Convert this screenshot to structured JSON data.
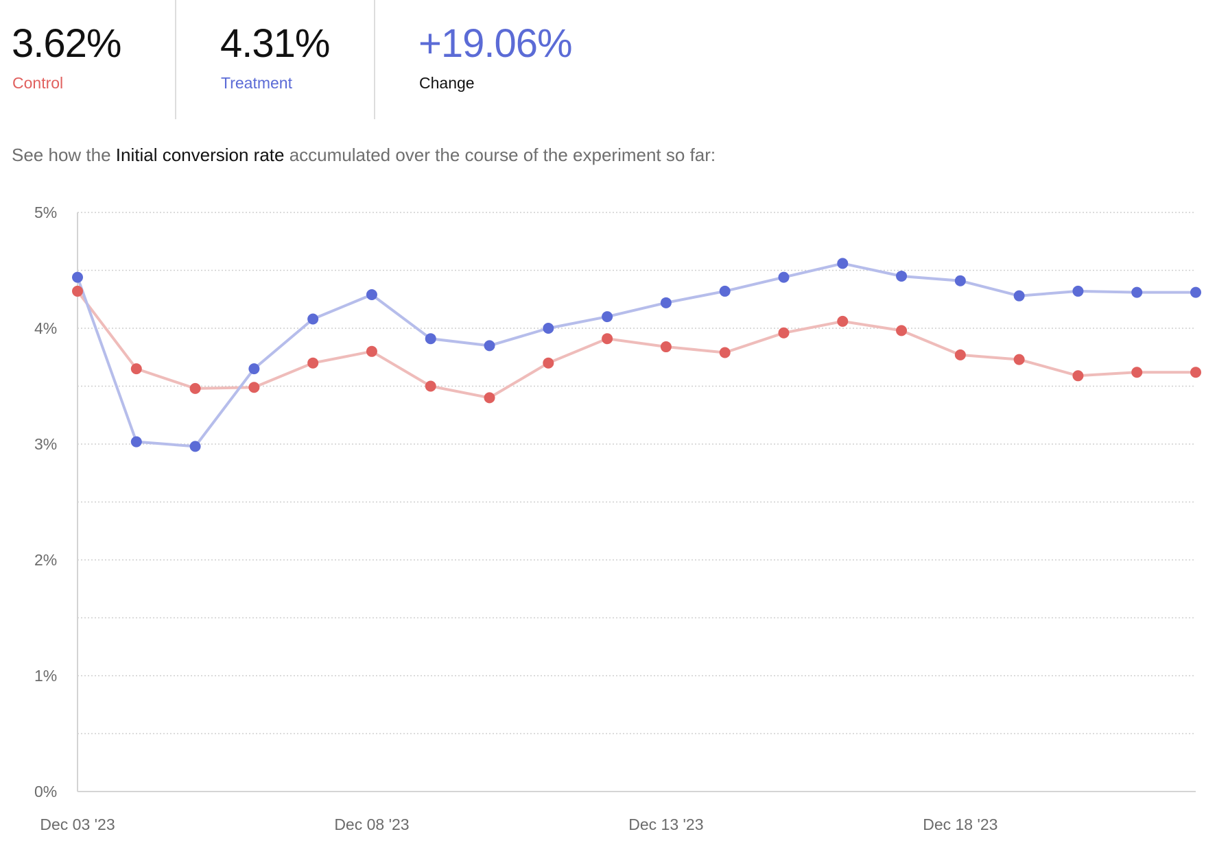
{
  "stats": [
    {
      "value": "3.62%",
      "label": "Control",
      "value_color": "#111111",
      "label_color": "#e0605e"
    },
    {
      "value": "4.31%",
      "label": "Treatment",
      "value_color": "#111111",
      "label_color": "#5b6bd6"
    },
    {
      "value": "+19.06%",
      "label": "Change",
      "value_color": "#5b6bd6",
      "label_color": "#111111"
    }
  ],
  "intro": {
    "prefix": "See how the ",
    "metric": "Initial conversion rate",
    "suffix": " accumulated over the course of the experiment so far:"
  },
  "chart_data": {
    "type": "line",
    "x": [
      "Dec 03 '23",
      "Dec 04 '23",
      "Dec 05 '23",
      "Dec 06 '23",
      "Dec 07 '23",
      "Dec 08 '23",
      "Dec 09 '23",
      "Dec 10 '23",
      "Dec 11 '23",
      "Dec 12 '23",
      "Dec 13 '23",
      "Dec 14 '23",
      "Dec 15 '23",
      "Dec 16 '23",
      "Dec 17 '23",
      "Dec 18 '23",
      "Dec 19 '23",
      "Dec 20 '23",
      "Dec 21 '23",
      "Dec 22 '23"
    ],
    "x_tick_labels": [
      "Dec 03 '23",
      "Dec 08 '23",
      "Dec 13 '23",
      "Dec 18 '23"
    ],
    "y_tick_labels": [
      "0%",
      "1%",
      "2%",
      "3%",
      "4%",
      "5%"
    ],
    "ylim": [
      0,
      5
    ],
    "y_unit": "%",
    "grid": "horizontal dotted",
    "series": [
      {
        "key": "treatment",
        "color": "#5b6bd6",
        "line_color": "#b6bdeb",
        "values": [
          4.44,
          3.02,
          2.98,
          3.65,
          4.08,
          4.29,
          3.91,
          3.85,
          4.0,
          4.1,
          4.22,
          4.32,
          4.44,
          4.56,
          4.45,
          4.41,
          4.28,
          4.32,
          4.31,
          4.31
        ]
      },
      {
        "key": "control",
        "color": "#e0605e",
        "line_color": "#efbcba",
        "values": [
          4.32,
          3.65,
          3.48,
          3.49,
          3.7,
          3.8,
          3.5,
          3.4,
          3.7,
          3.91,
          3.84,
          3.79,
          3.96,
          4.06,
          3.98,
          3.77,
          3.73,
          3.59,
          3.62,
          3.62
        ]
      }
    ]
  }
}
